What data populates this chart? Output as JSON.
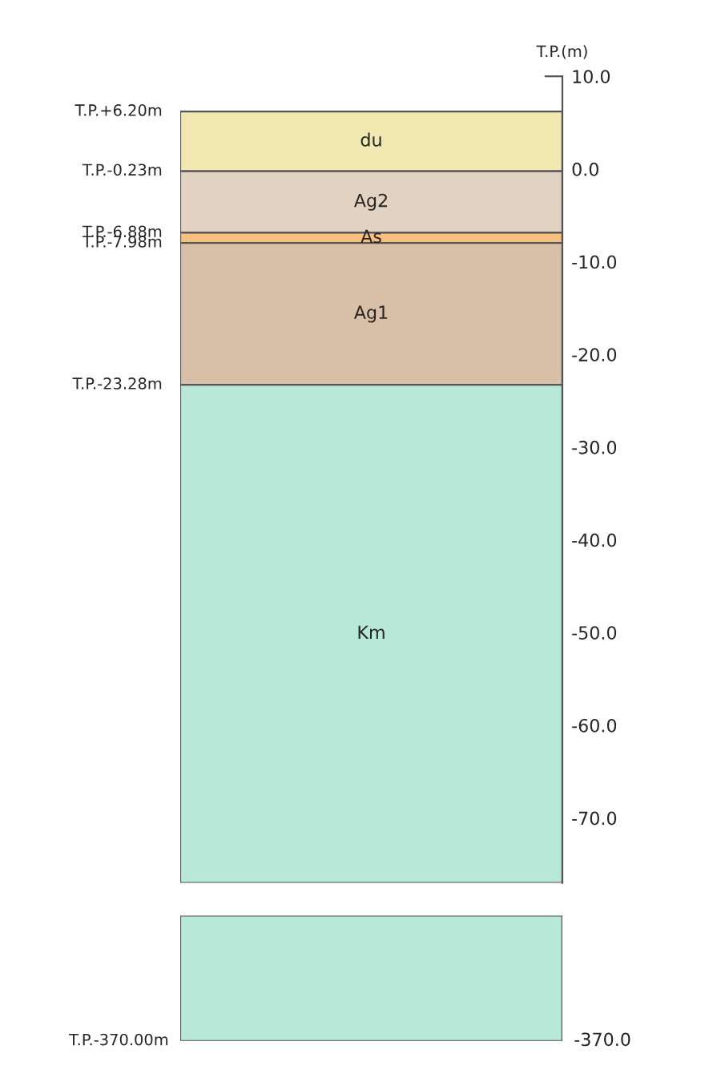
{
  "chart_data": [
    {
      "type": "bar",
      "categories": [
        null
      ],
      "ylabel": "T.P.(m)",
      "ylim": [
        -77,
        10
      ],
      "yticks": [
        {
          "value": 10,
          "label": "10.0"
        },
        {
          "value": 0,
          "label": "0.0"
        },
        {
          "value": -10,
          "label": "-10.0"
        },
        {
          "value": -20,
          "label": "-20.0"
        },
        {
          "value": -30,
          "label": "-30.0"
        },
        {
          "value": -40,
          "label": "-40.0"
        },
        {
          "value": -50,
          "label": "-50.0"
        },
        {
          "value": -60,
          "label": "-60.0"
        },
        {
          "value": -70,
          "label": "-70.0"
        }
      ],
      "series": [
        {
          "name": "du",
          "color": "#f0e8b0",
          "base": [
            6.2
          ],
          "values": [
            -6.43
          ]
        },
        {
          "name": "Ag2",
          "color": "#e2d2c2",
          "base": [
            -0.23
          ],
          "values": [
            -6.65
          ]
        },
        {
          "name": "As",
          "color": "#f8c080",
          "base": [
            -6.88
          ],
          "values": [
            -1.1
          ]
        },
        {
          "name": "Ag1",
          "color": "#d8c0a8",
          "base": [
            -7.98
          ],
          "values": [
            -15.3
          ]
        },
        {
          "name": "Km",
          "color": "#b8e8d8",
          "base": [
            -23.28
          ],
          "values": [
            -53.72
          ]
        }
      ],
      "annotations": [
        "T.P.+6.20m",
        "T.P.-0.23m",
        "T.P.-6.88m",
        "T.P.-7.98m",
        "T.P.-23.28m"
      ],
      "grid": false,
      "legend": false
    },
    {
      "type": "other",
      "annotations": [
        "T.P.-370.00m",
        "-370.0"
      ]
    }
  ]
}
